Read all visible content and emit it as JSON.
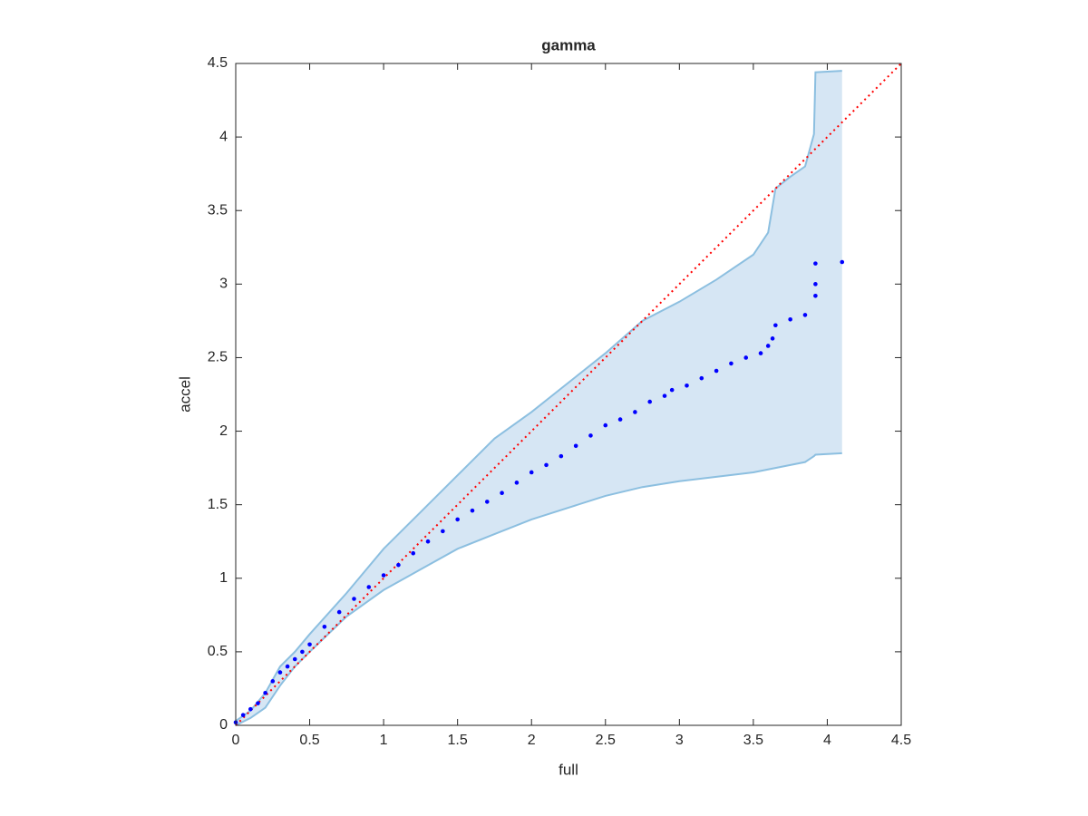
{
  "chart_data": {
    "type": "scatter",
    "title": "gamma",
    "x_label": "full",
    "y_label": "accel",
    "xlim": [
      0,
      4.5
    ],
    "ylim": [
      0,
      4.5
    ],
    "xticks": [
      0,
      0.5,
      1,
      1.5,
      2,
      2.5,
      3,
      3.5,
      4,
      4.5
    ],
    "yticks": [
      0,
      0.5,
      1,
      1.5,
      2,
      2.5,
      3,
      3.5,
      4,
      4.5
    ],
    "band": {
      "color": "#d6e6f4",
      "edge_color": "#8cbfe0",
      "x": [
        0,
        0.1,
        0.2,
        0.3,
        0.4,
        0.5,
        0.75,
        1,
        1.25,
        1.5,
        1.75,
        2,
        2.25,
        2.5,
        2.75,
        3,
        3.25,
        3.5,
        3.6,
        3.65,
        3.75,
        3.85,
        3.91,
        3.92,
        4.1
      ],
      "upper": [
        0.03,
        0.1,
        0.22,
        0.4,
        0.5,
        0.62,
        0.9,
        1.2,
        1.45,
        1.7,
        1.95,
        2.13,
        2.33,
        2.53,
        2.75,
        2.88,
        3.03,
        3.2,
        3.35,
        3.65,
        3.73,
        3.8,
        4.02,
        4.44,
        4.45
      ],
      "lower": [
        0,
        0.05,
        0.12,
        0.27,
        0.4,
        0.5,
        0.74,
        0.92,
        1.06,
        1.2,
        1.3,
        1.4,
        1.48,
        1.56,
        1.62,
        1.66,
        1.69,
        1.72,
        1.74,
        1.75,
        1.77,
        1.79,
        1.83,
        1.84,
        1.85
      ]
    },
    "reference_line": {
      "color": "#ff0000",
      "x": [
        0,
        4.5
      ],
      "y": [
        0,
        4.5
      ]
    },
    "series": [
      {
        "color": "#0000ff",
        "x": [
          0,
          0.05,
          0.1,
          0.15,
          0.2,
          0.25,
          0.3,
          0.35,
          0.4,
          0.45,
          0.5,
          0.6,
          0.7,
          0.8,
          0.9,
          1.0,
          1.1,
          1.2,
          1.3,
          1.4,
          1.5,
          1.6,
          1.7,
          1.8,
          1.9,
          2.0,
          2.1,
          2.2,
          2.3,
          2.4,
          2.5,
          2.6,
          2.7,
          2.8,
          2.9,
          2.95,
          3.05,
          3.15,
          3.25,
          3.35,
          3.45,
          3.55,
          3.6,
          3.63,
          3.65,
          3.75,
          3.85,
          3.92,
          3.92,
          3.92,
          4.1
        ],
        "values": [
          0.02,
          0.07,
          0.11,
          0.15,
          0.22,
          0.3,
          0.36,
          0.4,
          0.45,
          0.5,
          0.55,
          0.67,
          0.77,
          0.86,
          0.94,
          1.02,
          1.09,
          1.17,
          1.25,
          1.32,
          1.4,
          1.46,
          1.52,
          1.58,
          1.65,
          1.72,
          1.77,
          1.83,
          1.9,
          1.97,
          2.04,
          2.08,
          2.13,
          2.2,
          2.24,
          2.28,
          2.31,
          2.36,
          2.41,
          2.46,
          2.5,
          2.53,
          2.58,
          2.63,
          2.72,
          2.76,
          2.79,
          2.92,
          3.0,
          3.14,
          3.15
        ]
      }
    ]
  }
}
